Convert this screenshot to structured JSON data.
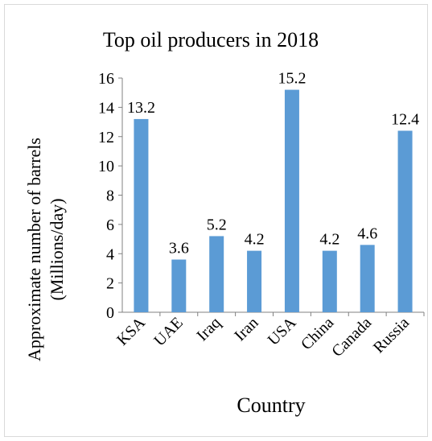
{
  "chart_data": {
    "type": "bar",
    "title": "Top oil producers in 2018",
    "xlabel": "Country",
    "ylabel": [
      "Approximate  number of barrels",
      "(Millions/day)"
    ],
    "categories": [
      "KSA",
      "UAE",
      "Iraq",
      "Iran",
      "USA",
      "China",
      "Canada",
      "Russia"
    ],
    "values": [
      13.2,
      3.6,
      5.2,
      4.2,
      15.2,
      4.2,
      4.6,
      12.4
    ],
    "data_labels": [
      "13.2",
      "3.6",
      "5.2",
      "4.2",
      "15.2",
      "4.2",
      "4.6",
      "12.4"
    ],
    "ylim": [
      0,
      16
    ],
    "yticks": [
      0,
      2,
      4,
      6,
      8,
      10,
      12,
      14,
      16
    ],
    "grid": false,
    "bar_color": "#5b9bd5"
  }
}
